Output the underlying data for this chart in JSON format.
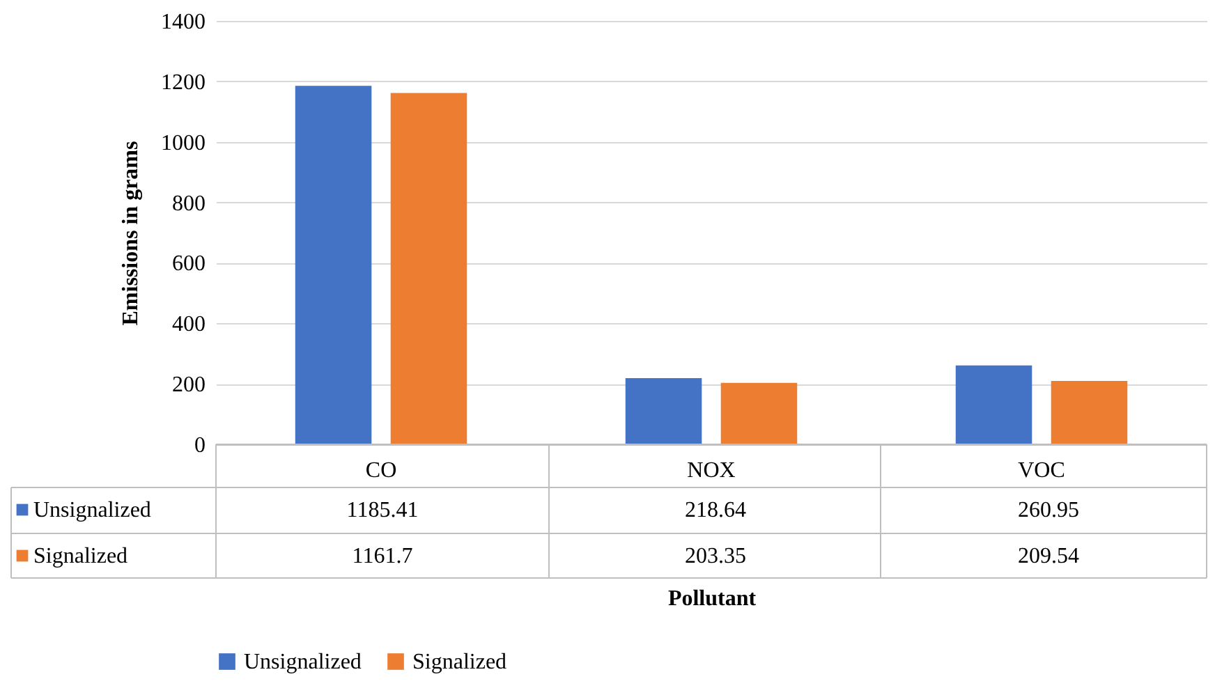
{
  "chart_data": {
    "type": "bar",
    "xlabel": "Pollutant",
    "ylabel": "Emissions in grams",
    "categories": [
      "CO",
      "NOX",
      "VOC"
    ],
    "series": [
      {
        "name": "Unsignalized",
        "color": "#4472c4",
        "values": [
          1185.41,
          218.64,
          260.95
        ]
      },
      {
        "name": "Signalized",
        "color": "#ed7d31",
        "values": [
          1161.7,
          203.35,
          209.54
        ]
      }
    ],
    "ylim": [
      0,
      1400
    ],
    "yticks": [
      0,
      200,
      400,
      600,
      800,
      1000,
      1200,
      1400
    ],
    "grid": "y",
    "legend": "bottom",
    "data_labels": true
  }
}
